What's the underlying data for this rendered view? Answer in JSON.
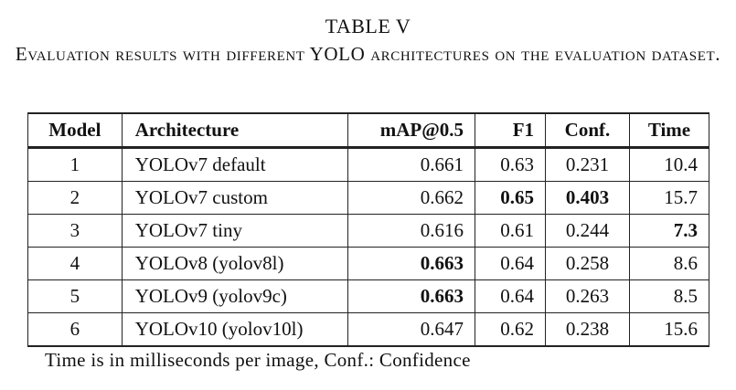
{
  "table_label": "TABLE V",
  "caption": "Evaluation results with different YOLO architectures on the evaluation dataset.",
  "columns": [
    "Model",
    "Architecture",
    "mAP@0.5",
    "F1",
    "Conf.",
    "Time"
  ],
  "rows": [
    {
      "model": "1",
      "architecture": "YOLOv7 default",
      "map": "0.661",
      "f1": "0.63",
      "conf": "0.231",
      "time": "10.4",
      "bold": []
    },
    {
      "model": "2",
      "architecture": "YOLOv7 custom",
      "map": "0.662",
      "f1": "0.65",
      "conf": "0.403",
      "time": "15.7",
      "bold": [
        "f1",
        "conf"
      ]
    },
    {
      "model": "3",
      "architecture": "YOLOv7 tiny",
      "map": "0.616",
      "f1": "0.61",
      "conf": "0.244",
      "time": "7.3",
      "bold": [
        "time"
      ]
    },
    {
      "model": "4",
      "architecture": "YOLOv8 (yolov8l)",
      "map": "0.663",
      "f1": "0.64",
      "conf": "0.258",
      "time": "8.6",
      "bold": [
        "map"
      ]
    },
    {
      "model": "5",
      "architecture": "YOLOv9 (yolov9c)",
      "map": "0.663",
      "f1": "0.64",
      "conf": "0.263",
      "time": "8.5",
      "bold": [
        "map"
      ]
    },
    {
      "model": "6",
      "architecture": "YOLOv10 (yolov10l)",
      "map": "0.647",
      "f1": "0.62",
      "conf": "0.238",
      "time": "15.6",
      "bold": []
    }
  ],
  "note": "Time is in milliseconds per image, Conf.: Confidence"
}
